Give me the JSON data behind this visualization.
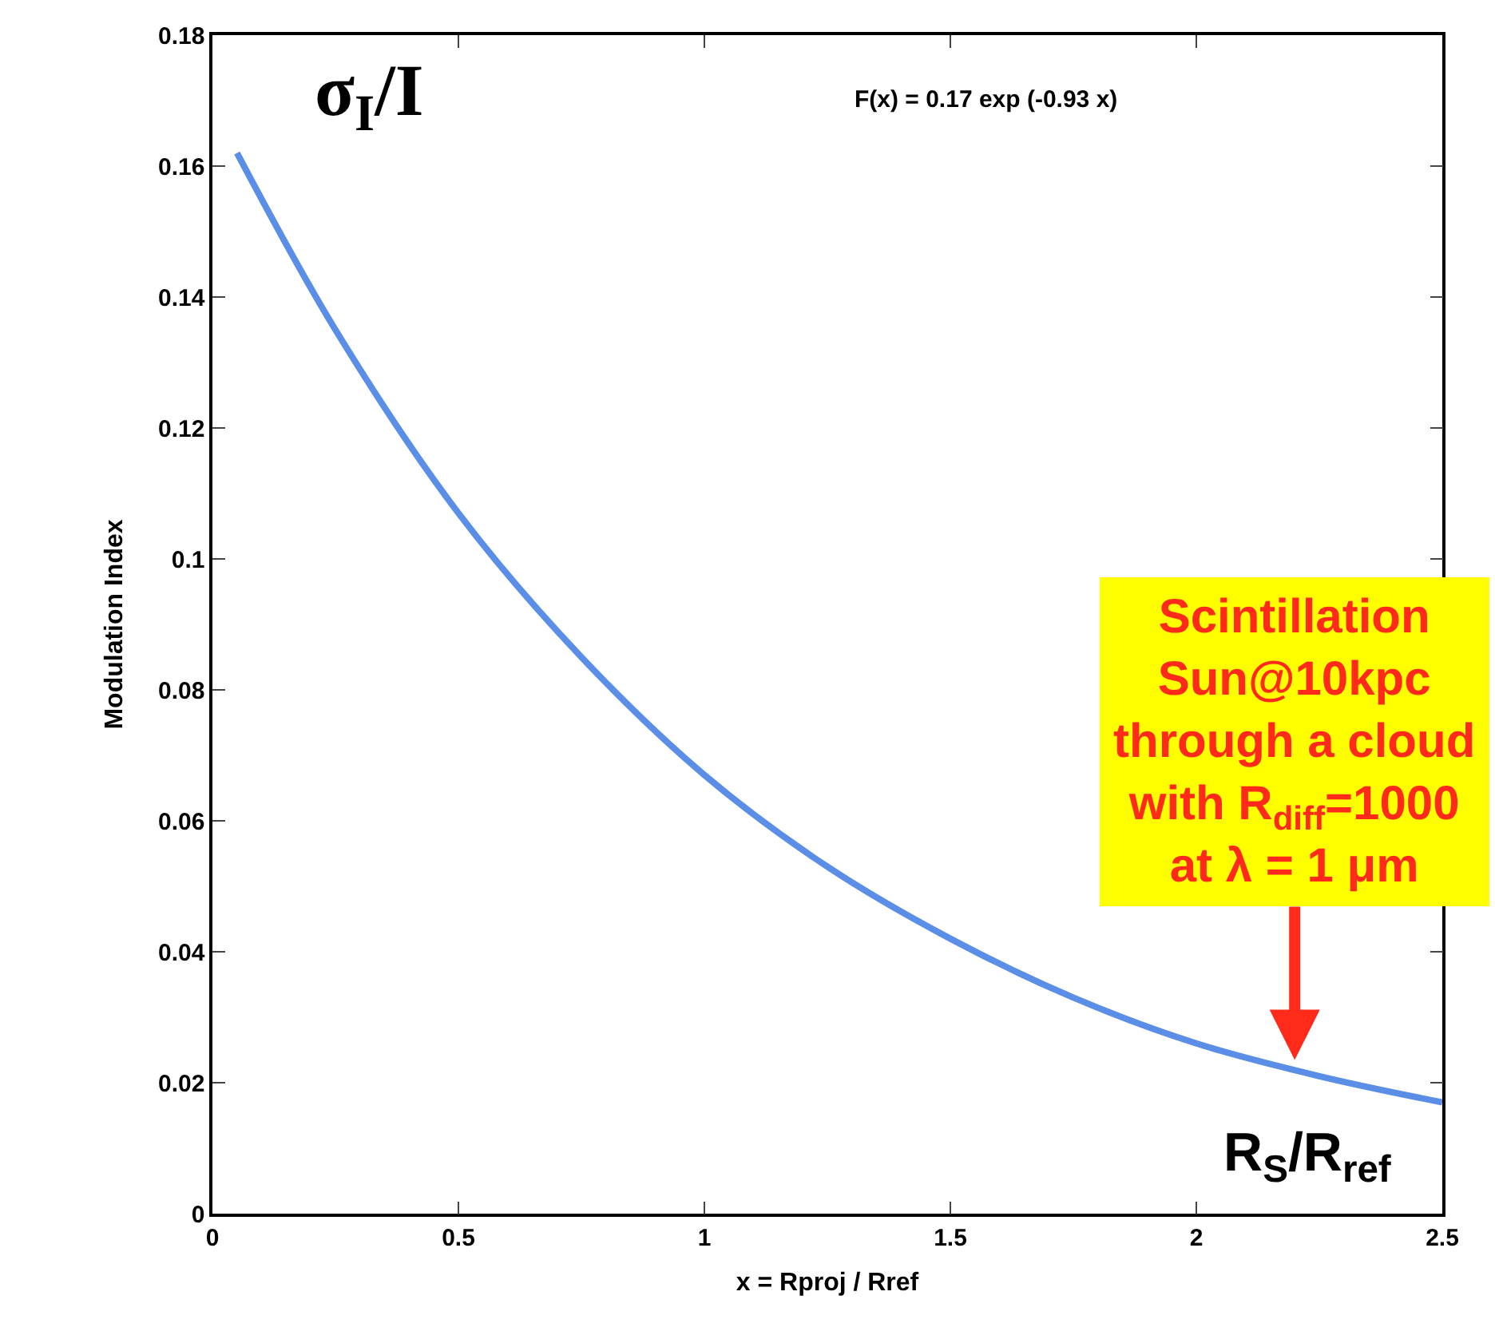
{
  "chart_data": {
    "type": "line",
    "xlabel": "x = Rproj / Rref",
    "ylabel": "Modulation Index",
    "x": [
      0.05,
      0.25,
      0.5,
      0.75,
      1.0,
      1.25,
      1.5,
      1.75,
      2.0,
      2.25,
      2.5
    ],
    "series": [
      {
        "color": "#5b8ee6",
        "values": [
          0.162,
          0.135,
          0.107,
          0.085,
          0.067,
          0.053,
          0.042,
          0.033,
          0.026,
          0.021,
          0.017
        ]
      }
    ],
    "xlim": [
      0,
      2.5
    ],
    "xticks": [
      0,
      0.5,
      1,
      1.5,
      2,
      2.5
    ],
    "ylim": [
      0,
      0.18
    ],
    "yticks": [
      0,
      0.02,
      0.04,
      0.06,
      0.08,
      0.1,
      0.12,
      0.14,
      0.16,
      0.18
    ],
    "grid": false,
    "marker": "none",
    "line_style": "solid",
    "annotations": [
      "σ$_{I}$/I",
      "F(x) = 0.17 exp (-0.93 x)",
      "R$_{S}$/R$_{ref}$",
      {
        "text": "Scintillation\nSun@10kpc\nthrough a cloud\nwith R$_{diff}$=1000\nat λ = 1 μm",
        "x": 2.2,
        "y": 0.022
      }
    ]
  }
}
